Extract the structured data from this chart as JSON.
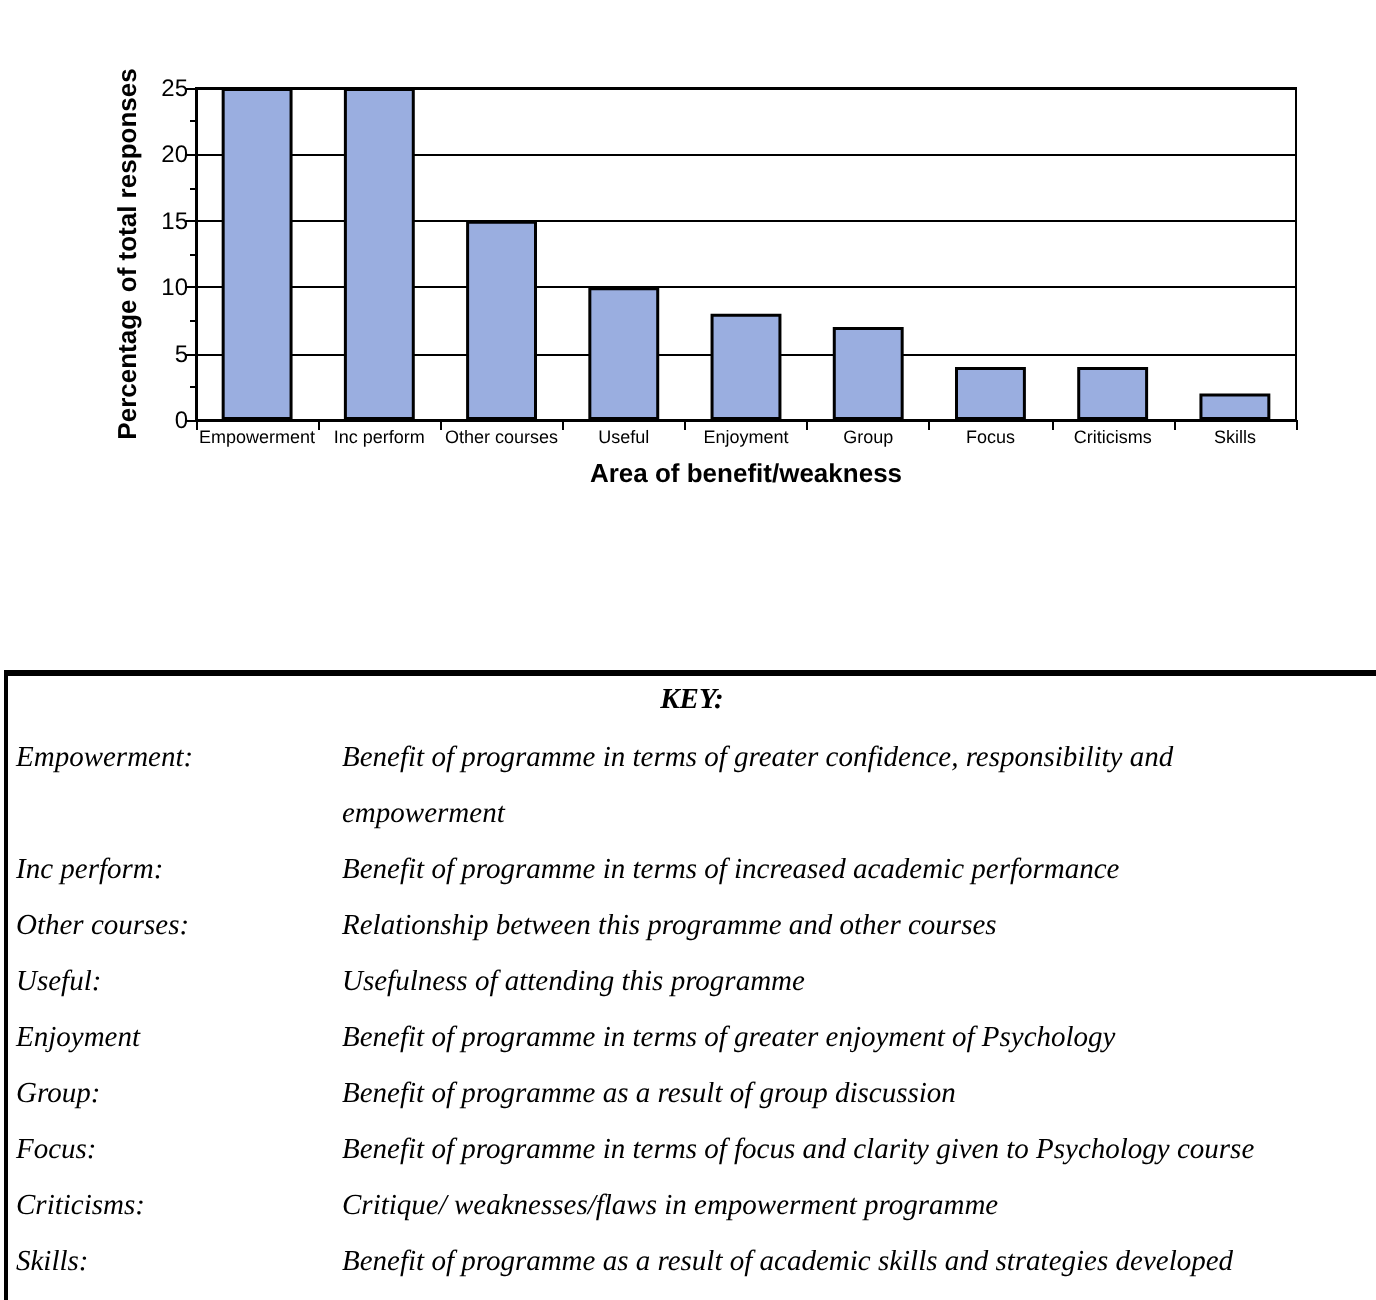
{
  "chart_data": {
    "type": "bar",
    "categories": [
      "Empowerment",
      "Inc perform",
      "Other courses",
      "Useful",
      "Enjoyment",
      "Group",
      "Focus",
      "Criticisms",
      "Skills"
    ],
    "values": [
      25,
      25,
      15,
      10,
      8,
      7,
      4,
      4,
      2
    ],
    "color": "#9aaee0",
    "xlabel": "Area of benefit/weakness",
    "ylabel": "Percentage of total responses",
    "ylim": [
      0,
      25
    ],
    "yticks": [
      0,
      5,
      10,
      15,
      20,
      25
    ],
    "grid": "y",
    "annotations": [
      "KEY:",
      "Empowerment:",
      "Benefit of programme in terms of greater confidence, responsibility and empowerment",
      "Inc perform:",
      "Benefit of programme in terms of increased academic performance",
      "Other courses:",
      "Relationship between this programme and other courses",
      "Useful:",
      "Usefulness of attending this programme",
      "Enjoyment",
      "Benefit of programme in terms of greater enjoyment of Psychology",
      "Group:",
      "Benefit of programme as a result of group discussion",
      "Focus:",
      "Benefit of programme in terms of focus and clarity given to Psychology course",
      "Criticisms:",
      "Critique/ weaknesses/flaws in empowerment programme",
      "Skills:",
      "Benefit of programme as a result of academic skills and strategies developed"
    ]
  }
}
